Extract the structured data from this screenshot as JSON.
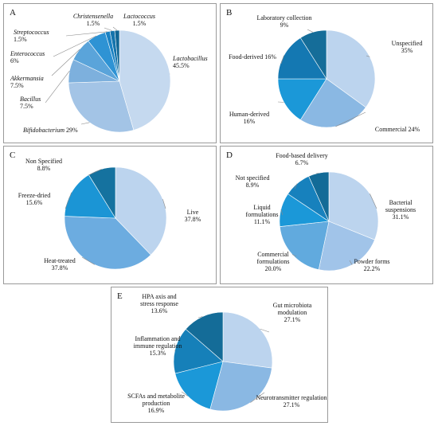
{
  "chart_data": [
    {
      "type": "pie",
      "panel": "A",
      "slices": [
        {
          "label": "Lactobacillus",
          "pct": "45.5%",
          "value": 45.5,
          "color": "#c5d9ef",
          "italic": true
        },
        {
          "label": "Bifidobacterium",
          "pct": "29%",
          "value": 29,
          "color": "#a3c4e6",
          "italic": true
        },
        {
          "label": "Bacillus",
          "pct": "7.5%",
          "value": 7.5,
          "color": "#7db0dd",
          "italic": true
        },
        {
          "label": "Akkermansia",
          "pct": "7.5%",
          "value": 7.5,
          "color": "#5aa4da",
          "italic": true
        },
        {
          "label": "Enterococcus",
          "pct": "6%",
          "value": 6,
          "color": "#2e93d4",
          "italic": true
        },
        {
          "label": "Streptococcus",
          "pct": "1.5%",
          "value": 1.5,
          "color": "#1a82c3",
          "italic": true
        },
        {
          "label": "Christensenella",
          "pct": "1.5%",
          "value": 1.5,
          "color": "#1474ac",
          "italic": true
        },
        {
          "label": "Lactococcus",
          "pct": "1.5%",
          "value": 1.5,
          "color": "#106694",
          "italic": true
        }
      ]
    },
    {
      "type": "pie",
      "panel": "B",
      "slices": [
        {
          "label": "Unspecified",
          "pct": "35%",
          "value": 35,
          "color": "#bcd4ee",
          "italic": false
        },
        {
          "label": "Commercial",
          "pct": "24%",
          "value": 24,
          "color": "#8ab8e3",
          "italic": false
        },
        {
          "label": "Human-derived",
          "pct": "16%",
          "value": 16,
          "color": "#1b98d8",
          "italic": false
        },
        {
          "label": "Food-derived",
          "pct": "16%",
          "value": 16,
          "color": "#1478b2",
          "italic": false
        },
        {
          "label": "Laboratory collection",
          "pct": "9%",
          "value": 9,
          "color": "#156d99",
          "italic": false
        }
      ]
    },
    {
      "type": "pie",
      "panel": "C",
      "slices": [
        {
          "label": "Live",
          "pct": "37.8%",
          "value": 37.8,
          "color": "#bcd4ee",
          "italic": false
        },
        {
          "label": "Heat-treated",
          "pct": "37.8%",
          "value": 37.8,
          "color": "#6cace0",
          "italic": false
        },
        {
          "label": "Freeze-dried",
          "pct": "15.6%",
          "value": 15.6,
          "color": "#1b95d5",
          "italic": false
        },
        {
          "label": "Non Specified",
          "pct": "8.8%",
          "value": 8.8,
          "color": "#15729f",
          "italic": false
        }
      ]
    },
    {
      "type": "pie",
      "panel": "D",
      "slices": [
        {
          "label": "Bacterial suspensions",
          "pct": "31.1%",
          "value": 31.1,
          "color": "#bcd4ee",
          "italic": false
        },
        {
          "label": "Powder forms",
          "pct": "22.2%",
          "value": 22.2,
          "color": "#a1c4e9",
          "italic": false
        },
        {
          "label": "Commercial formulations",
          "pct": "20.0%",
          "value": 20.0,
          "color": "#61aade",
          "italic": false
        },
        {
          "label": "Liquid formulations",
          "pct": "11.1%",
          "value": 11.1,
          "color": "#1b98d8",
          "italic": false
        },
        {
          "label": "Not specified",
          "pct": "8.9%",
          "value": 8.9,
          "color": "#1781bd",
          "italic": false
        },
        {
          "label": "Food-based delivery",
          "pct": "6.7%",
          "value": 6.7,
          "color": "#136b97",
          "italic": false
        }
      ]
    },
    {
      "type": "pie",
      "panel": "E",
      "slices": [
        {
          "label": "Gut microbiota modulation",
          "pct": "27.1%",
          "value": 27.1,
          "color": "#bcd4ee",
          "italic": false
        },
        {
          "label": "Neurotransmitter regulation",
          "pct": "27.1%",
          "value": 27.1,
          "color": "#8ab8e3",
          "italic": false
        },
        {
          "label": "SCFAs and metabolite production",
          "pct": "16.9%",
          "value": 16.9,
          "color": "#1b98d8",
          "italic": false
        },
        {
          "label": "Inflammation and immune regulation",
          "pct": "15.3%",
          "value": 15.3,
          "color": "#1680b9",
          "italic": false
        },
        {
          "label": "HPA axis and stress response",
          "pct": "13.6%",
          "value": 13.6,
          "color": "#146c98",
          "italic": false
        }
      ]
    }
  ]
}
